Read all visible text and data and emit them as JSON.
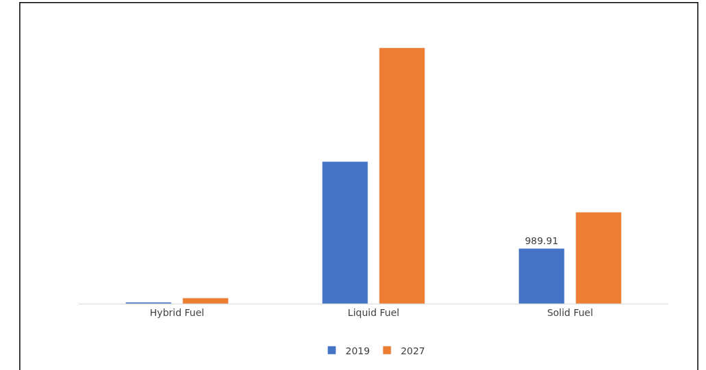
{
  "chart_data": {
    "type": "bar",
    "categories": [
      "Hybrid Fuel",
      "Liquid Fuel",
      "Solid Fuel"
    ],
    "series": [
      {
        "name": "2019",
        "color": "#4472c4",
        "values": [
          25,
          2550,
          989.91
        ],
        "value_labels": [
          null,
          null,
          "989.91"
        ]
      },
      {
        "name": "2027",
        "color": "#ed7d31",
        "values": [
          100,
          4590,
          1640
        ]
      }
    ],
    "tick_labels": "x",
    "legend": "bottom"
  }
}
